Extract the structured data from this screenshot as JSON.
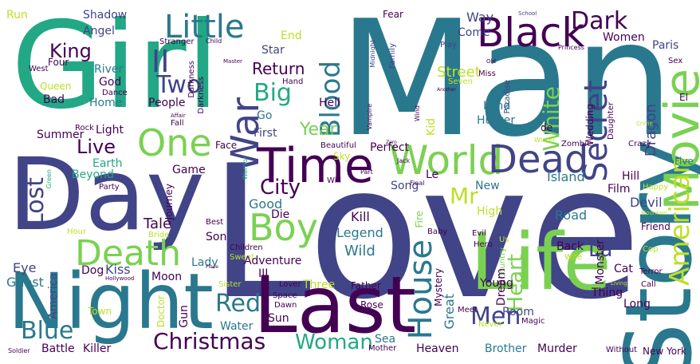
{
  "words": [
    {
      "text": "Love"
    },
    {
      "text": "Man"
    },
    {
      "text": "Girl"
    },
    {
      "text": "Day"
    },
    {
      "text": "Night"
    },
    {
      "text": "Last"
    },
    {
      "text": "Life"
    },
    {
      "text": "Story"
    },
    {
      "text": "Time"
    },
    {
      "text": "Movie"
    },
    {
      "text": "Black"
    },
    {
      "text": "World"
    },
    {
      "text": "Dead"
    },
    {
      "text": "One"
    },
    {
      "text": "Little"
    },
    {
      "text": "Boy"
    },
    {
      "text": "Death"
    },
    {
      "text": "House"
    },
    {
      "text": "Christmas"
    },
    {
      "text": "War"
    },
    {
      "text": "Dark"
    },
    {
      "text": "City"
    },
    {
      "text": "Secret"
    },
    {
      "text": "White"
    },
    {
      "text": "American"
    },
    {
      "text": "Blue"
    },
    {
      "text": "Red"
    },
    {
      "text": "Woman"
    },
    {
      "text": "Big"
    },
    {
      "text": "Blood"
    },
    {
      "text": "Heart"
    },
    {
      "text": "Men"
    },
    {
      "text": "II"
    },
    {
      "text": "Two"
    },
    {
      "text": "King"
    },
    {
      "text": "Lost"
    },
    {
      "text": "Live"
    },
    {
      "text": "Year"
    },
    {
      "text": "Mr"
    },
    {
      "text": "La"
    },
    {
      "text": "Return"
    },
    {
      "text": "Street"
    },
    {
      "text": "Run"
    },
    {
      "text": "Shadow"
    },
    {
      "text": "Angel"
    },
    {
      "text": "Fear"
    },
    {
      "text": "Way"
    },
    {
      "text": "Come"
    },
    {
      "text": "Women"
    },
    {
      "text": "Paris"
    },
    {
      "text": "Star"
    },
    {
      "text": "End"
    },
    {
      "text": "Stranger"
    },
    {
      "text": "Child"
    },
    {
      "text": "Darkness"
    },
    {
      "text": "Family"
    },
    {
      "text": "Midnight"
    },
    {
      "text": "School"
    },
    {
      "text": "Princess"
    },
    {
      "text": "Four"
    },
    {
      "text": "West"
    },
    {
      "text": "River"
    },
    {
      "text": "God"
    },
    {
      "text": "Queen"
    },
    {
      "text": "Dance"
    },
    {
      "text": "Bad"
    },
    {
      "text": "Home"
    },
    {
      "text": "People"
    },
    {
      "text": "Hand"
    },
    {
      "text": "Master"
    },
    {
      "text": "Darkness"
    },
    {
      "text": "Hell"
    },
    {
      "text": "Go"
    },
    {
      "text": "Play"
    },
    {
      "text": "Seven"
    },
    {
      "text": "Miss"
    },
    {
      "text": "Old"
    },
    {
      "text": "Another"
    },
    {
      "text": "Paradise"
    },
    {
      "text": "Land"
    },
    {
      "text": "Hunter"
    },
    {
      "text": "Dragon"
    },
    {
      "text": "Sex"
    },
    {
      "text": "El"
    },
    {
      "text": "Summer"
    },
    {
      "text": "Rock"
    },
    {
      "text": "Light"
    },
    {
      "text": "Affair"
    },
    {
      "text": "Fall"
    },
    {
      "text": "First"
    },
    {
      "text": "Wedding"
    },
    {
      "text": "Daughter"
    },
    {
      "text": "Crime"
    },
    {
      "text": "Kid"
    },
    {
      "text": "Wind"
    },
    {
      "text": "Vampire"
    },
    {
      "text": "Face"
    },
    {
      "text": "Beautiful"
    },
    {
      "text": "Zero"
    },
    {
      "text": "Sky"
    },
    {
      "text": "Perfect"
    },
    {
      "text": "de"
    },
    {
      "text": "Winter"
    },
    {
      "text": "Zombie"
    },
    {
      "text": "Crazy"
    },
    {
      "text": "Game"
    },
    {
      "text": "Earth"
    },
    {
      "text": "Beyond"
    },
    {
      "text": "Green"
    },
    {
      "text": "Warrior"
    },
    {
      "text": "Party"
    },
    {
      "text": "Part"
    },
    {
      "text": "Le"
    },
    {
      "text": "Jack"
    },
    {
      "text": "Final"
    },
    {
      "text": "Will"
    },
    {
      "text": "Song"
    },
    {
      "text": "New"
    },
    {
      "text": "Island"
    },
    {
      "text": "Film"
    },
    {
      "text": "Hill"
    },
    {
      "text": "Five"
    },
    {
      "text": "Happy"
    },
    {
      "text": "Journey"
    },
    {
      "text": "Die"
    },
    {
      "text": "Good"
    },
    {
      "text": "Best"
    },
    {
      "text": "Tale"
    },
    {
      "text": "Kill"
    },
    {
      "text": "High"
    },
    {
      "text": "Evil"
    },
    {
      "text": "Road"
    },
    {
      "text": "Devil"
    },
    {
      "text": "Mountain"
    },
    {
      "text": "Friend"
    },
    {
      "text": "Hour"
    },
    {
      "text": "Bride"
    },
    {
      "text": "Son"
    },
    {
      "text": "Legend"
    },
    {
      "text": "Fire"
    },
    {
      "text": "Hero"
    },
    {
      "text": "Baby"
    },
    {
      "text": "Back"
    },
    {
      "text": "Wife"
    },
    {
      "text": "Monster"
    },
    {
      "text": "Cop"
    },
    {
      "text": "Eye"
    },
    {
      "text": "Ghost"
    },
    {
      "text": "Dog"
    },
    {
      "text": "Kiss"
    },
    {
      "text": "Hollywood"
    },
    {
      "text": "Moon"
    },
    {
      "text": "Lady"
    },
    {
      "text": "Sweet"
    },
    {
      "text": "Children"
    },
    {
      "text": "Wild"
    },
    {
      "text": "Adventure"
    },
    {
      "text": "III"
    },
    {
      "text": "Us"
    },
    {
      "text": "Country"
    },
    {
      "text": "Cat"
    },
    {
      "text": "Terror"
    },
    {
      "text": "Call"
    },
    {
      "text": "Living"
    },
    {
      "text": "America"
    },
    {
      "text": "Town"
    },
    {
      "text": "Doctor"
    },
    {
      "text": "Place"
    },
    {
      "text": "Gun"
    },
    {
      "text": "Sister"
    },
    {
      "text": "Space"
    },
    {
      "text": "Dawn"
    },
    {
      "text": "Lover"
    },
    {
      "text": "Three"
    },
    {
      "text": "Father"
    },
    {
      "text": "Mystery"
    },
    {
      "text": "Young"
    },
    {
      "text": "Dream"
    },
    {
      "text": "Thing"
    },
    {
      "text": "Long"
    },
    {
      "text": "Rose"
    },
    {
      "text": "Great"
    },
    {
      "text": "Meet"
    },
    {
      "text": "Room"
    },
    {
      "text": "Magic"
    },
    {
      "text": "Water"
    },
    {
      "text": "Sun"
    },
    {
      "text": "Never"
    },
    {
      "text": "Soldier"
    },
    {
      "text": "Battle"
    },
    {
      "text": "Killer"
    },
    {
      "text": "Sea"
    },
    {
      "text": "Mother"
    },
    {
      "text": "Heaven"
    },
    {
      "text": "Brother"
    },
    {
      "text": "Murder"
    },
    {
      "text": "Without"
    },
    {
      "text": "New York"
    }
  ]
}
